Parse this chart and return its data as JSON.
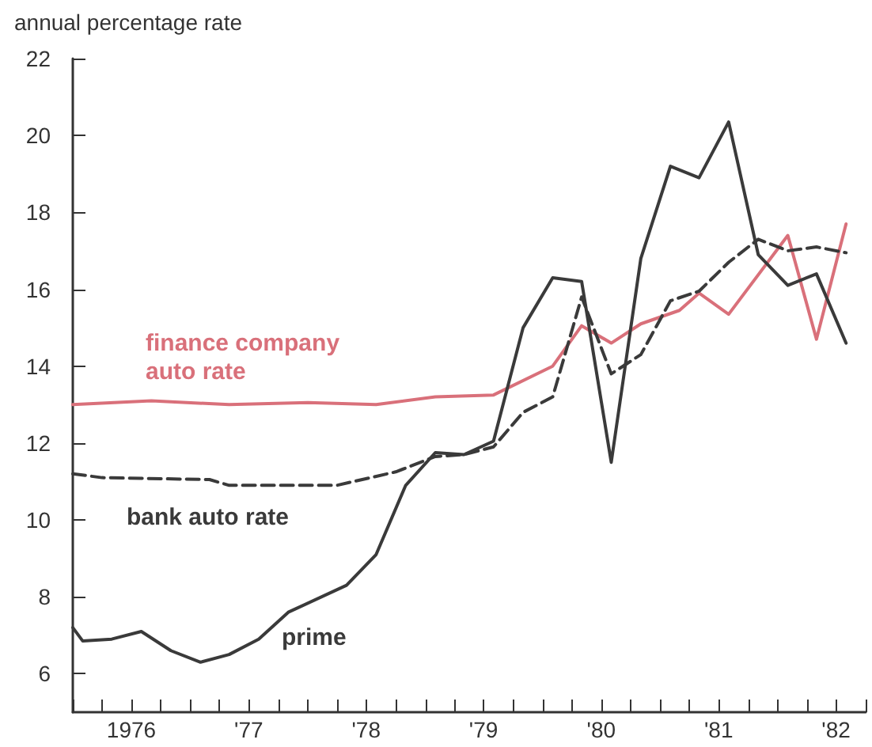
{
  "chart_data": {
    "type": "line",
    "ylabel": "annual percentage rate",
    "xlim": [
      "1976-01",
      "1982-10"
    ],
    "xticks": [
      {
        "value": "1976-01",
        "label": null
      },
      {
        "value": "1976-04",
        "label": null
      },
      {
        "value": "1976-07",
        "label": "1976"
      },
      {
        "value": "1976-10",
        "label": null
      },
      {
        "value": "1977-01",
        "label": null
      },
      {
        "value": "1977-04",
        "label": null
      },
      {
        "value": "1977-07",
        "label": "'77"
      },
      {
        "value": "1977-10",
        "label": null
      },
      {
        "value": "1978-01",
        "label": null
      },
      {
        "value": "1978-04",
        "label": null
      },
      {
        "value": "1978-07",
        "label": "'78"
      },
      {
        "value": "1978-10",
        "label": null
      },
      {
        "value": "1979-01",
        "label": null
      },
      {
        "value": "1979-04",
        "label": null
      },
      {
        "value": "1979-07",
        "label": "'79"
      },
      {
        "value": "1979-10",
        "label": null
      },
      {
        "value": "1980-01",
        "label": null
      },
      {
        "value": "1980-04",
        "label": null
      },
      {
        "value": "1980-07",
        "label": "'80"
      },
      {
        "value": "1980-10",
        "label": null
      },
      {
        "value": "1981-01",
        "label": null
      },
      {
        "value": "1981-04",
        "label": null
      },
      {
        "value": "1981-07",
        "label": "'81"
      },
      {
        "value": "1981-10",
        "label": null
      },
      {
        "value": "1982-01",
        "label": null
      },
      {
        "value": "1982-04",
        "label": null
      },
      {
        "value": "1982-07",
        "label": "'82"
      },
      {
        "value": "1982-10",
        "label": null
      }
    ],
    "ylim": [
      5,
      22
    ],
    "yticks": [
      6,
      8,
      10,
      12,
      14,
      16,
      18,
      20,
      22
    ],
    "grid": false,
    "legend": false,
    "marker": "none",
    "series": [
      {
        "name": "finance company auto rate",
        "color": "#d9707a",
        "line_style": "solid",
        "x": [
          "1976-01",
          "1976-09",
          "1977-05",
          "1978-01",
          "1978-08",
          "1979-02",
          "1979-08",
          "1980-02",
          "1980-05",
          "1980-08",
          "1980-11",
          "1981-03",
          "1981-05",
          "1981-08",
          "1982-02",
          "1982-05",
          "1982-08"
        ],
        "values": [
          13.0,
          13.1,
          13.0,
          13.05,
          13.0,
          13.2,
          13.25,
          14.0,
          15.05,
          14.6,
          15.1,
          15.45,
          15.9,
          15.35,
          17.4,
          14.7,
          17.7
        ]
      },
      {
        "name": "bank auto rate",
        "color": "#3a3a3a",
        "line_style": "dashed",
        "x": [
          "1976-01",
          "1976-04",
          "1977-03",
          "1977-05",
          "1978-04",
          "1978-10",
          "1979-02",
          "1979-05",
          "1979-08",
          "1979-11",
          "1980-02",
          "1980-05",
          "1980-08",
          "1980-11",
          "1981-02",
          "1981-05",
          "1981-08",
          "1981-11",
          "1982-02",
          "1982-05",
          "1982-08"
        ],
        "values": [
          11.2,
          11.1,
          11.05,
          10.9,
          10.9,
          11.25,
          11.65,
          11.7,
          11.9,
          12.8,
          13.2,
          15.8,
          13.8,
          14.3,
          15.7,
          15.95,
          16.7,
          17.3,
          17.0,
          17.1,
          16.95
        ]
      },
      {
        "name": "prime",
        "color": "#3a3a3a",
        "line_style": "solid",
        "x": [
          "1976-01",
          "1976-02",
          "1976-05",
          "1976-08",
          "1976-11",
          "1977-02",
          "1977-05",
          "1977-08",
          "1977-11",
          "1978-05",
          "1978-08",
          "1978-11",
          "1979-02",
          "1979-05",
          "1979-08",
          "1979-11",
          "1980-02",
          "1980-05",
          "1980-08",
          "1980-11",
          "1981-02",
          "1981-05",
          "1981-08",
          "1981-11",
          "1982-02",
          "1982-05",
          "1982-08"
        ],
        "values": [
          7.2,
          6.85,
          6.9,
          7.1,
          6.6,
          6.3,
          6.5,
          6.9,
          7.6,
          8.3,
          9.1,
          10.9,
          11.75,
          11.7,
          12.05,
          15.0,
          16.3,
          16.2,
          11.5,
          16.8,
          19.2,
          18.9,
          20.35,
          16.9,
          16.1,
          16.4,
          14.6
        ]
      }
    ]
  }
}
